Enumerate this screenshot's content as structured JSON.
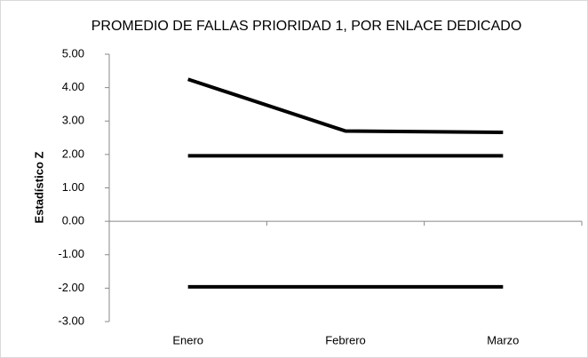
{
  "chart_data": {
    "type": "line",
    "title": "PROMEDIO DE FALLAS PRIORIDAD 1, POR ENLACE DEDICADO",
    "y_label": "Estadístico Z",
    "categories": [
      "Enero",
      "Febrero",
      "Marzo"
    ],
    "series": [
      {
        "color": "#000000",
        "values": [
          4.25,
          2.7,
          2.66
        ]
      },
      {
        "color": "#000000",
        "values": [
          1.96,
          1.96,
          1.96
        ]
      },
      {
        "color": "#000000",
        "values": [
          -1.96,
          -1.96,
          -1.96
        ]
      }
    ],
    "ylim": [
      -3,
      5
    ],
    "yticks": [
      {
        "value": 5,
        "label": "5.00"
      },
      {
        "value": 4,
        "label": "4.00"
      },
      {
        "value": 3,
        "label": "3.00"
      },
      {
        "value": 2,
        "label": "2.00"
      },
      {
        "value": 1,
        "label": "1.00"
      },
      {
        "value": 0,
        "label": "0.00"
      },
      {
        "value": -1,
        "label": "-1.00"
      },
      {
        "value": -2,
        "label": "-2.00"
      },
      {
        "value": -3,
        "label": "-3.00"
      }
    ],
    "grid": false
  }
}
